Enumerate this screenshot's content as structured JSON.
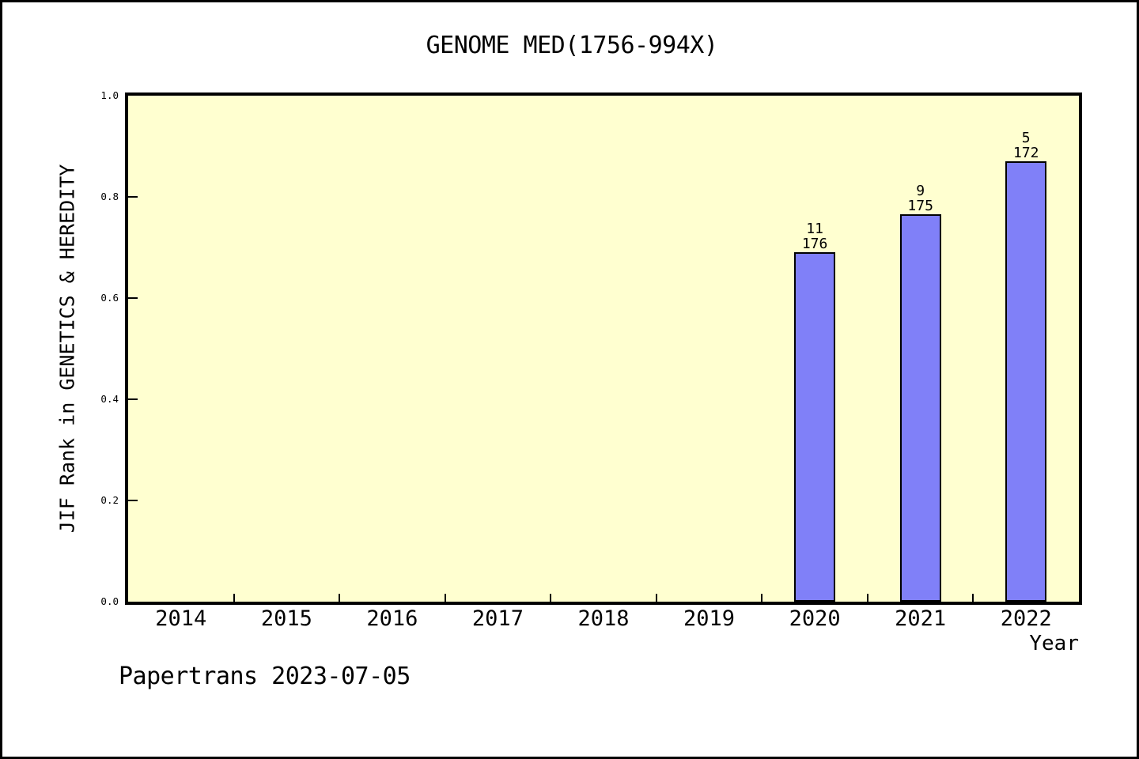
{
  "title": "GENOME MED(1756-994X)",
  "footer": "Papertrans 2023-07-05",
  "chart_data": {
    "type": "bar",
    "title": "GENOME MED(1756-994X)",
    "xlabel": "Year",
    "ylabel": "JIF Rank in GENETICS & HEREDITY",
    "categories": [
      "2014",
      "2015",
      "2016",
      "2017",
      "2018",
      "2019",
      "2020",
      "2021",
      "2022"
    ],
    "series": [
      {
        "name": "JIF Rank in GENETICS & HEREDITY",
        "points": [
          {
            "year": "2020",
            "rank": "11",
            "total": "176",
            "bar_value": 0.69
          },
          {
            "year": "2021",
            "rank": "9",
            "total": "175",
            "bar_value": 0.765
          },
          {
            "year": "2022",
            "rank": "5",
            "total": "172",
            "bar_value": 0.87
          }
        ]
      }
    ],
    "ylim": [
      0,
      1
    ],
    "y_ticks": [
      0.0,
      0.2,
      0.4,
      0.6,
      0.8,
      1.0
    ],
    "grid": "off",
    "legend": "none",
    "colors": {
      "bar_fill": "#8080f8",
      "bar_border": "#000000",
      "plot_background": "#ffffd0",
      "page_background": "#ffffff",
      "text": "#000000"
    }
  }
}
